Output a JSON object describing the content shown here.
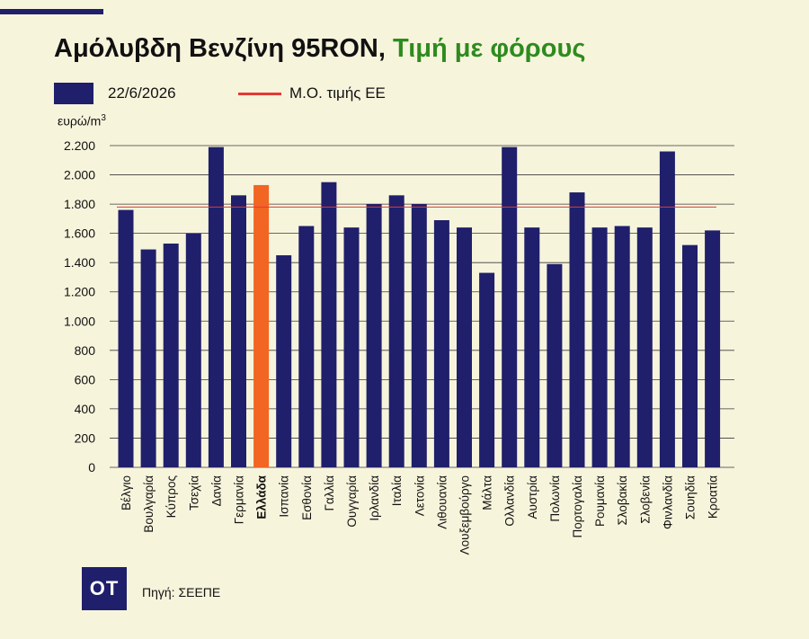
{
  "header": {
    "title_part1": "Αμόλυβδη Βενζίνη 95RON,",
    "title_part2": "Τιμή με φόρους"
  },
  "legend": {
    "bar_label": "22/6/2026",
    "line_label": "Μ.Ο. τιμής ΕΕ"
  },
  "footer": {
    "logo_text": "OT",
    "source": "Πηγή: ΣΕΕΠΕ"
  },
  "colors": {
    "bar": "#1f1f6b",
    "highlight": "#f26522",
    "average_line": "#e53935",
    "title_accent": "#2e8b1e",
    "background": "#f7f4dc"
  },
  "chart_data": {
    "type": "bar",
    "ylabel": "ευρώ/m",
    "ylabel_superscript": "3",
    "ylim": [
      0,
      2200
    ],
    "yticks": [
      0,
      200,
      400,
      600,
      800,
      1000,
      1200,
      1400,
      1600,
      1800,
      2000,
      2200
    ],
    "ytick_labels": [
      "0",
      "200",
      "400",
      "600",
      "800",
      "1.000",
      "1.200",
      "1.400",
      "1.600",
      "1.800",
      "2.000",
      "2.200"
    ],
    "grid": true,
    "categories": [
      "Βέλγιο",
      "Βουλγαρία",
      "Κύπρος",
      "Τσεχία",
      "Δανία",
      "Γερμανία",
      "Ελλάδα",
      "Ισπανία",
      "Εσθονία",
      "Γαλλία",
      "Ουγγαρία",
      "Ιρλανδία",
      "Ιταλία",
      "Λετονία",
      "Λιθουανία",
      "Λουξεμβούργο",
      "Μάλτα",
      "Ολλανδία",
      "Αυστρία",
      "Πολωνία",
      "Πορτογαλία",
      "Ρουμανία",
      "Σλοβακία",
      "Σλοβενία",
      "Φινλανδία",
      "Σουηδία",
      "Κροατία"
    ],
    "series": [
      {
        "name": "22/6/2026",
        "values": [
          1760,
          1490,
          1530,
          1600,
          2190,
          1860,
          1930,
          1450,
          1650,
          1950,
          1640,
          1800,
          1860,
          1800,
          1690,
          1640,
          1330,
          2190,
          1640,
          1390,
          1880,
          1640,
          1650,
          1640,
          2160,
          1520,
          1620
        ]
      }
    ],
    "highlight_category": "Ελλάδα",
    "eu_average": 1780
  }
}
